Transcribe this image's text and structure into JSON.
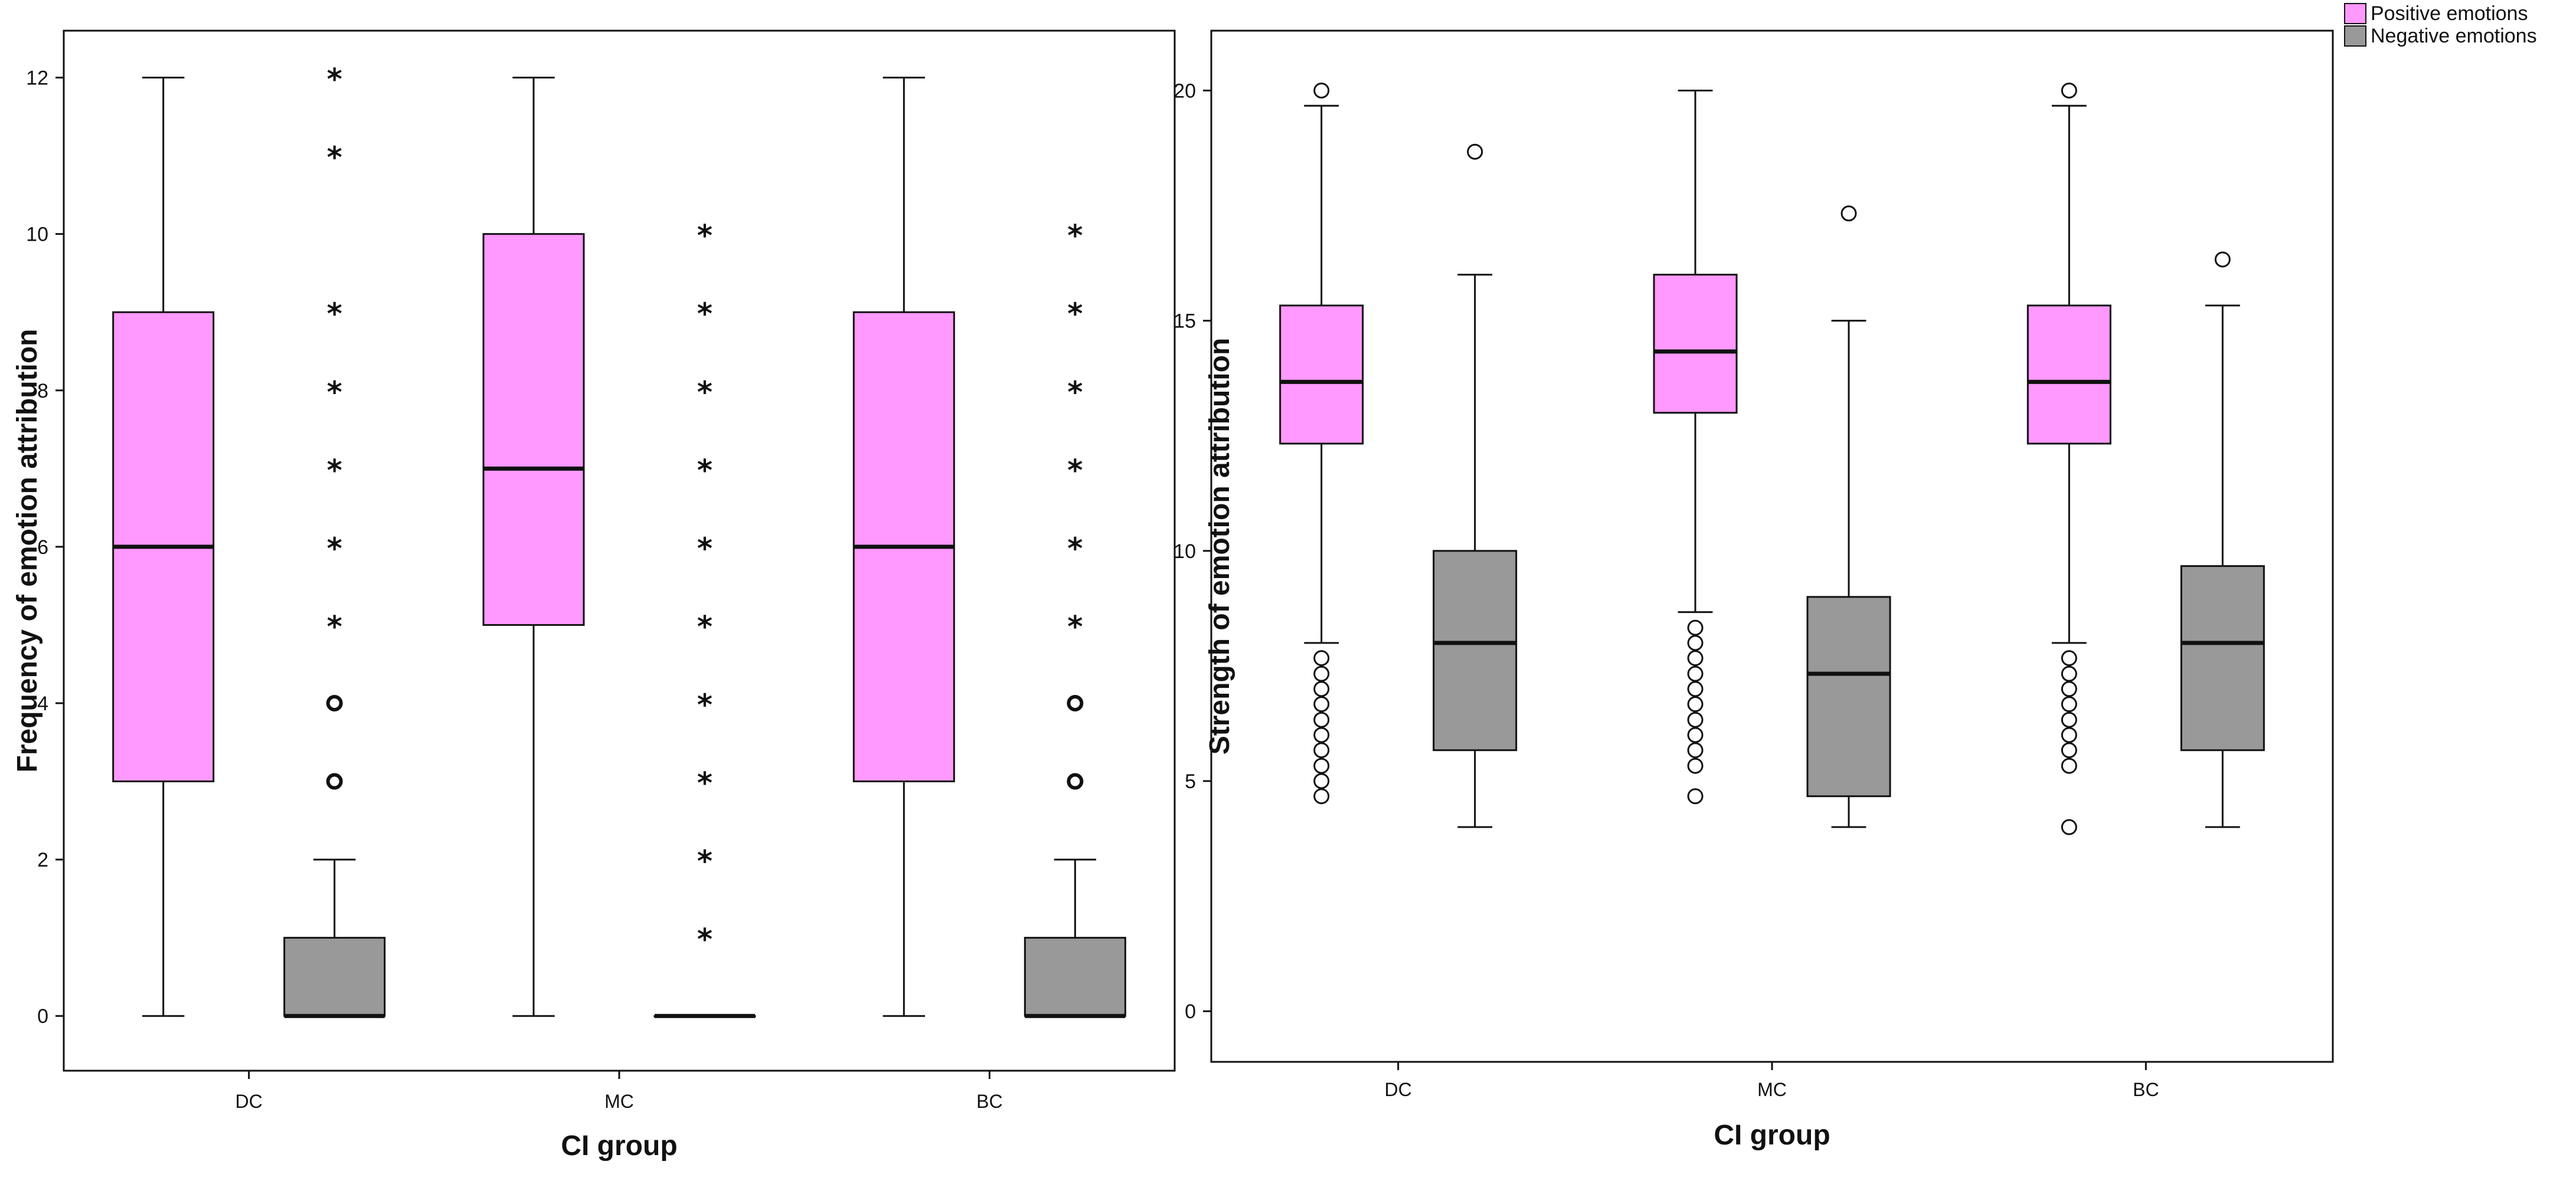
{
  "colors": {
    "positive": "#ff99ff",
    "negative": "#999999",
    "stroke": "#111111",
    "frame": "#111111"
  },
  "legend": {
    "placement": "top-right",
    "items": [
      {
        "label": "Positive emotions",
        "color": "#ff99ff"
      },
      {
        "label": "Negative emotions",
        "color": "#999999"
      }
    ]
  },
  "chart_data": [
    {
      "type": "boxplot",
      "title": "",
      "xlabel": "CI group",
      "ylabel": "Frequency of emotion attribution",
      "categories": [
        "DC",
        "MC",
        "BC"
      ],
      "ylim": [
        -0.7,
        12.6
      ],
      "yticks": [
        0,
        2,
        4,
        6,
        8,
        10,
        12
      ],
      "series": [
        {
          "name": "Positive emotions",
          "boxes": [
            {
              "category": "DC",
              "whisker_low": 0,
              "q1": 3,
              "median": 6,
              "q3": 9,
              "whisker_high": 12,
              "outliers": [],
              "extremes": []
            },
            {
              "category": "MC",
              "whisker_low": 0,
              "q1": 5,
              "median": 7,
              "q3": 10,
              "whisker_high": 12,
              "outliers": [],
              "extremes": []
            },
            {
              "category": "BC",
              "whisker_low": 0,
              "q1": 3,
              "median": 6,
              "q3": 9,
              "whisker_high": 12,
              "outliers": [],
              "extremes": []
            }
          ]
        },
        {
          "name": "Negative emotions",
          "boxes": [
            {
              "category": "DC",
              "whisker_low": 0,
              "q1": 0,
              "median": 0,
              "q3": 1,
              "whisker_high": 2,
              "outliers": [
                3,
                4
              ],
              "extremes": [
                5,
                6,
                7,
                8,
                9,
                11,
                12
              ]
            },
            {
              "category": "MC",
              "whisker_low": 0,
              "q1": 0,
              "median": 0,
              "q3": 0,
              "whisker_high": 0,
              "outliers": [],
              "extremes": [
                1,
                2,
                3,
                4,
                5,
                6,
                7,
                8,
                9,
                10
              ]
            },
            {
              "category": "BC",
              "whisker_low": 0,
              "q1": 0,
              "median": 0,
              "q3": 1,
              "whisker_high": 2,
              "outliers": [
                3,
                4
              ],
              "extremes": [
                5,
                6,
                7,
                8,
                9,
                10
              ]
            }
          ]
        }
      ]
    },
    {
      "type": "boxplot",
      "title": "",
      "xlabel": "CI group",
      "ylabel": "Strength of emotion attribution",
      "categories": [
        "DC",
        "MC",
        "BC"
      ],
      "ylim": [
        -1.1,
        21.3
      ],
      "yticks": [
        0,
        5,
        10,
        15,
        20
      ],
      "series": [
        {
          "name": "Positive emotions",
          "boxes": [
            {
              "category": "DC",
              "whisker_low": 8,
              "q1": 12.33,
              "median": 13.67,
              "q3": 15.33,
              "whisker_high": 19.67,
              "outliers": [
                4.67,
                5,
                5.33,
                5.67,
                6,
                6.33,
                6.67,
                7,
                7.33,
                7.67,
                20
              ],
              "extremes": []
            },
            {
              "category": "MC",
              "whisker_low": 8.67,
              "q1": 13,
              "median": 14.33,
              "q3": 16,
              "whisker_high": 20,
              "outliers": [
                4.67,
                5.33,
                5.67,
                6,
                6.33,
                6.67,
                7,
                7.33,
                7.67,
                8,
                8.33
              ],
              "extremes": []
            },
            {
              "category": "BC",
              "whisker_low": 8,
              "q1": 12.33,
              "median": 13.67,
              "q3": 15.33,
              "whisker_high": 19.67,
              "outliers": [
                4,
                5.33,
                5.67,
                6,
                6.33,
                6.67,
                7,
                7.33,
                7.67,
                20
              ],
              "extremes": []
            }
          ]
        },
        {
          "name": "Negative emotions",
          "boxes": [
            {
              "category": "DC",
              "whisker_low": 4,
              "q1": 5.67,
              "median": 8,
              "q3": 10,
              "whisker_high": 16,
              "outliers": [
                18.67
              ],
              "extremes": []
            },
            {
              "category": "MC",
              "whisker_low": 4,
              "q1": 4.67,
              "median": 7.33,
              "q3": 9,
              "whisker_high": 15,
              "outliers": [
                17.33
              ],
              "extremes": []
            },
            {
              "category": "BC",
              "whisker_low": 4,
              "q1": 5.67,
              "median": 8,
              "q3": 9.67,
              "whisker_high": 15.33,
              "outliers": [
                16.33
              ],
              "extremes": []
            }
          ]
        }
      ]
    }
  ]
}
